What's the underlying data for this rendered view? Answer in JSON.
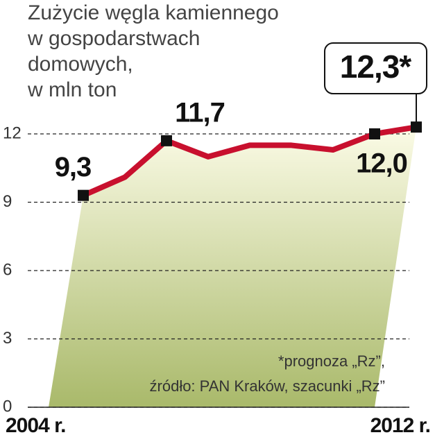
{
  "chart_data": {
    "type": "line",
    "title": [
      "Zużycie węgla kamiennego",
      "w gospodarstwach",
      "domowych,",
      "w mln ton"
    ],
    "categories": [
      "2004 r.",
      null,
      null,
      null,
      null,
      null,
      null,
      null,
      "2012 r."
    ],
    "series": [
      {
        "color": "#c8102e",
        "values": [
          9.3,
          10.1,
          11.7,
          11.0,
          11.5,
          11.5,
          11.3,
          12.0,
          12.3
        ],
        "value_labels": [
          "9,3",
          null,
          "11,7",
          null,
          null,
          null,
          null,
          "12,0",
          "12,3*"
        ]
      }
    ],
    "ylim": [
      0,
      12
    ],
    "yticks": [
      0,
      3,
      6,
      9,
      12
    ],
    "grid": true,
    "notes": [
      "*prognoza „Rz”,",
      "źródło: PAN Kraków, szacunki „Rz”"
    ]
  }
}
